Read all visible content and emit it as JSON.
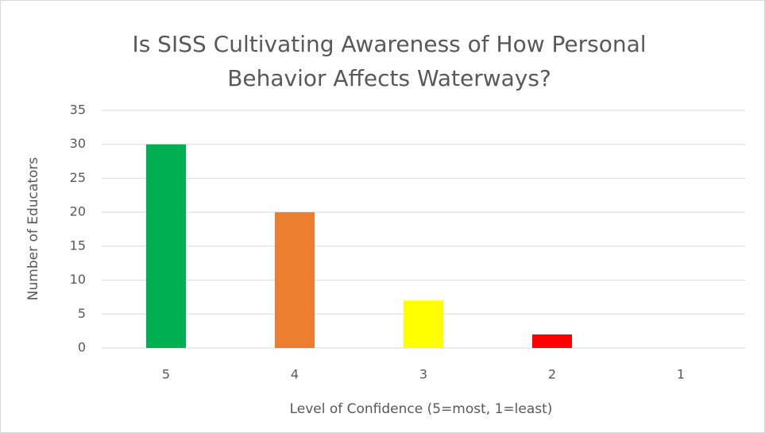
{
  "chart_data": {
    "type": "bar",
    "title": [
      "Is SISS Cultivating Awareness of How Personal",
      "Behavior Affects Waterways?"
    ],
    "x_label": "Level of Confidence (5=most, 1=least)",
    "y_label": "Number of Educators",
    "categories": [
      "5",
      "4",
      "3",
      "2",
      "1"
    ],
    "values": [
      30,
      20,
      7,
      2,
      0
    ],
    "colors": [
      "#00b050",
      "#ed7d31",
      "#ffff00",
      "#ff0000",
      "#4472c4"
    ],
    "ylim": [
      0,
      35
    ],
    "yticks": [
      0,
      5,
      10,
      15,
      20,
      25,
      30,
      35
    ],
    "grid": true
  }
}
